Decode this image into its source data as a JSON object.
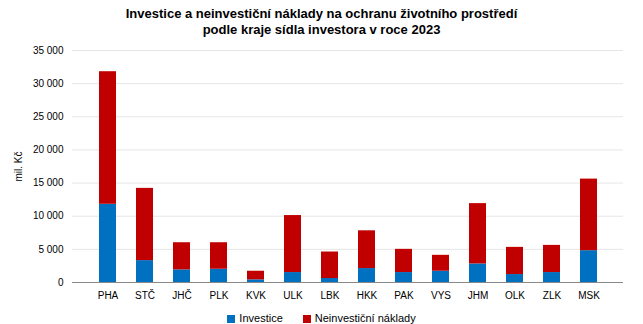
{
  "chart_data": {
    "type": "bar",
    "title": "Investice a neinvestiční náklady na ochranu životního prostředí\npodle kraje sídla investora v roce 2023",
    "y_label": "mil. Kč",
    "categories": [
      "PHA",
      "STČ",
      "JHČ",
      "PLK",
      "KVK",
      "ULK",
      "LBK",
      "HKK",
      "PAK",
      "VYS",
      "JHM",
      "OLK",
      "ZLK",
      "MSK"
    ],
    "series": [
      {
        "name": "Investice",
        "color": "#0070c0",
        "values": [
          11800,
          3300,
          1900,
          2000,
          400,
          1500,
          600,
          2100,
          1500,
          1700,
          2800,
          1200,
          1500,
          4800
        ]
      },
      {
        "name": "Neinvestiční náklady",
        "color": "#c00000",
        "values": [
          20000,
          10900,
          4100,
          4000,
          1300,
          8600,
          4000,
          5700,
          3500,
          2400,
          9100,
          4100,
          4100,
          10800
        ]
      }
    ],
    "stacked": true,
    "ylim": [
      0,
      35000
    ],
    "yticks": [
      0,
      {
        "value": 5000,
        "label": "5 000"
      },
      {
        "value": 10000,
        "label": "10 000"
      },
      {
        "value": 15000,
        "label": "15 000"
      },
      {
        "value": 20000,
        "label": "20 000"
      },
      {
        "value": 25000,
        "label": "25 000"
      },
      {
        "value": 30000,
        "label": "30 000"
      },
      {
        "value": 35000,
        "label": "35 000"
      }
    ],
    "grid": true,
    "legend": "bottom"
  }
}
